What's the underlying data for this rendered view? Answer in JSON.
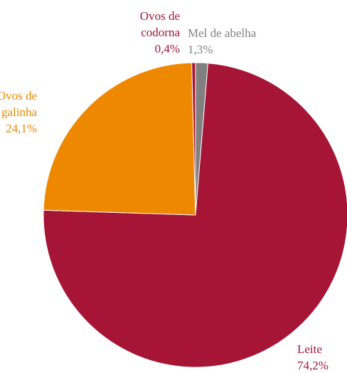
{
  "chart_data": {
    "type": "pie",
    "slices": [
      {
        "label_lines": [
          "Mel de abelha"
        ],
        "value_label": "1,3%",
        "value": 1.3,
        "color": "#808080"
      },
      {
        "label_lines": [
          "Leite"
        ],
        "value_label": "74,2%",
        "value": 74.2,
        "color": "#a61535"
      },
      {
        "label_lines": [
          "Ovos de",
          "galinha"
        ],
        "value_label": "24,1%",
        "value": 24.1,
        "color": "#ee8800"
      },
      {
        "label_lines": [
          "Ovos de",
          "codorna"
        ],
        "value_label": "0,4%",
        "value": 0.4,
        "color": "#a61535"
      }
    ]
  }
}
